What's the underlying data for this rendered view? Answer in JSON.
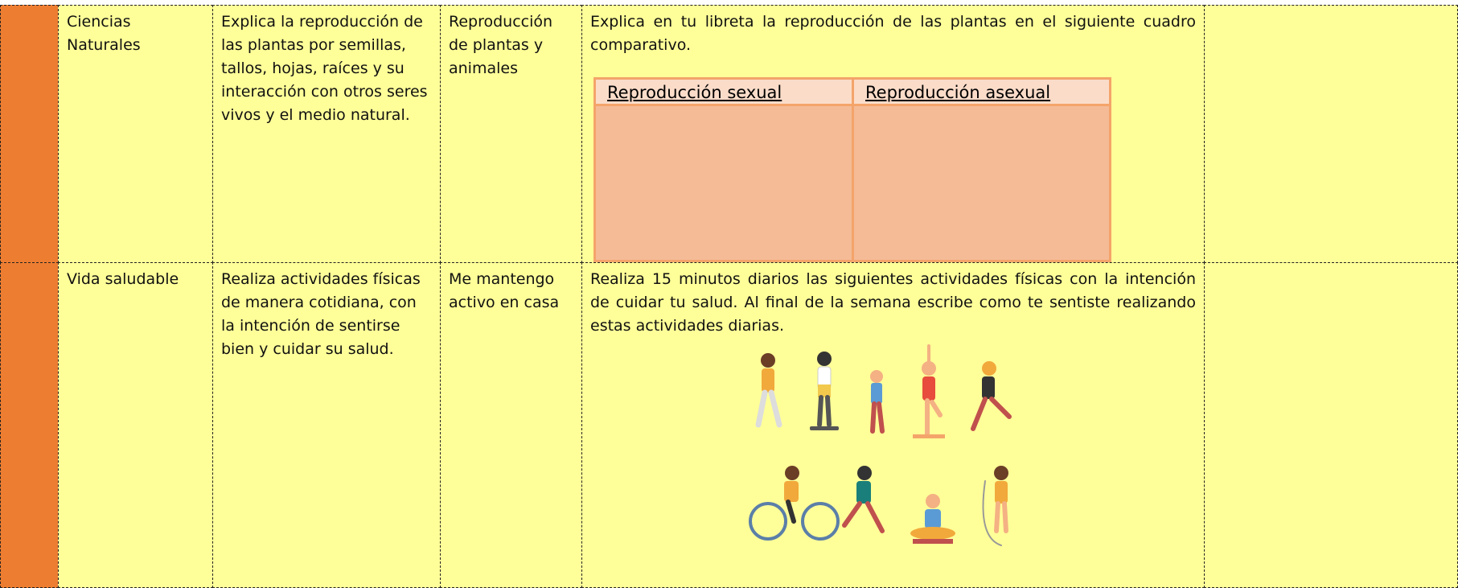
{
  "table": {
    "rows": [
      [
        "Ciencias Naturales",
        "Explica la reproducción de las plantas por semillas, tallos, hojas, raíces y su interacción con otros seres vivos y el medio natural.",
        "Reproducción de plantas y animales",
        "Explica en tu libreta la reproducción de las plantas en el siguiente cuadro comparativo."
      ],
      [
        "Vida saludable",
        "Realiza actividades físicas de manera cotidiana, con la intención de sentirse bien y cuidar su salud.",
        "Me mantengo activo en casa",
        "Realiza 15 minutos diarios las siguientes actividades físicas con la intención de cuidar tu salud. Al final de la semana escribe como te sentiste realizando estas actividades diarias."
      ]
    ]
  },
  "comparison_table": {
    "headers": [
      "Reproducción sexual",
      "Reproducción asexual"
    ]
  }
}
